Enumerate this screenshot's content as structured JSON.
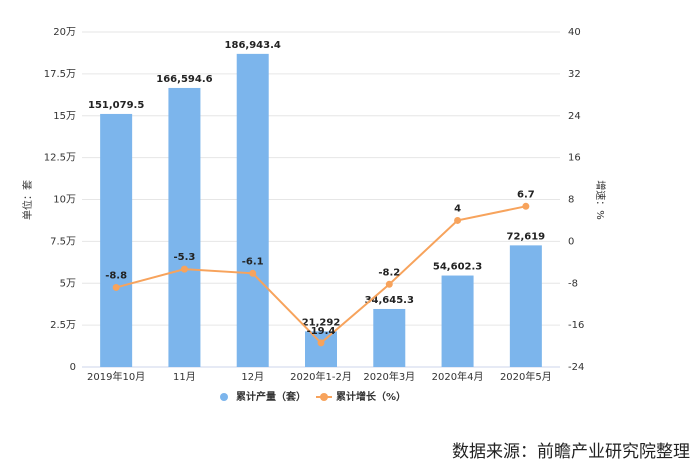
{
  "chart_data": {
    "type": "bar",
    "categories": [
      "2019年10月",
      "11月",
      "12月",
      "2020年1-2月",
      "2020年3月",
      "2020年4月",
      "2020年5月"
    ],
    "series": [
      {
        "name": "累计产量（套）",
        "type": "bar",
        "color": "#7cb5ec",
        "values": [
          151079.5,
          166594.6,
          186943.4,
          21292,
          34645.3,
          54602.3,
          72619
        ],
        "value_labels": [
          "151,079.5",
          "166,594.6",
          "186,943.4",
          "21,292",
          "34,645.3",
          "54,602.3",
          "72,619"
        ]
      },
      {
        "name": "累计增长（%）",
        "type": "line",
        "axis": "y2",
        "color": "#f7a35c",
        "values": [
          -8.8,
          -5.3,
          -6.1,
          -19.4,
          -8.2,
          4,
          6.7
        ]
      }
    ],
    "ylim": [
      0,
      200000
    ],
    "yticks": [
      0,
      {
        "value": 25000,
        "label": "2.5万"
      },
      {
        "value": 50000,
        "label": "5万"
      },
      {
        "value": 75000,
        "label": "7.5万"
      },
      {
        "value": 100000,
        "label": "10万"
      },
      {
        "value": 125000,
        "label": "12.5万"
      },
      {
        "value": 150000,
        "label": "15万"
      },
      {
        "value": 175000,
        "label": "17.5万"
      },
      {
        "value": 200000,
        "label": "20万"
      }
    ],
    "y2lim": [
      -24,
      40
    ],
    "y2ticks": [
      -24,
      -16,
      -8,
      0,
      8,
      16,
      24,
      32,
      40
    ],
    "ylabel": "单位：套",
    "y2label": "增速：%",
    "grid": true,
    "source": "数据来源：前瞻产业研究院整理"
  }
}
